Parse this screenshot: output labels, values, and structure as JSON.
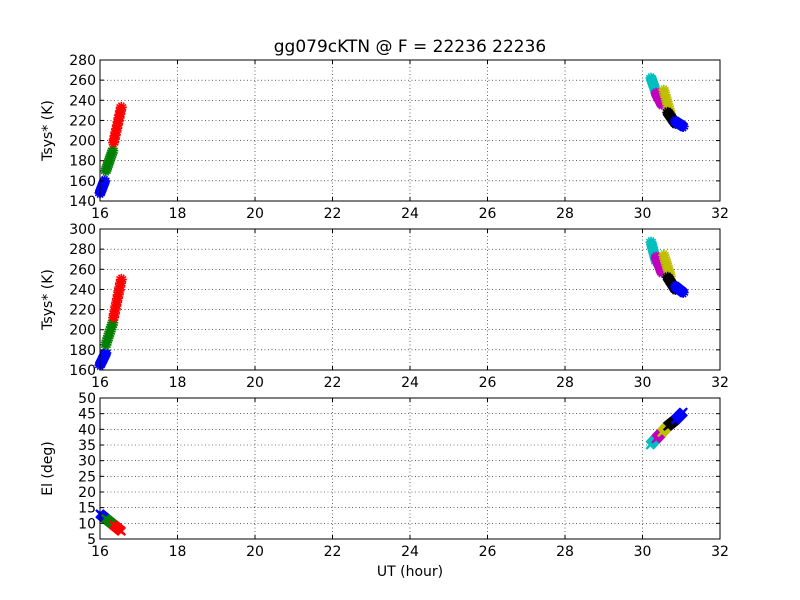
{
  "title": "gg079cKTN @ F = 22236 22236",
  "chart_data": {
    "type": "scatter",
    "title": "gg079cKTN @ F = 22236 22236",
    "xlabel": "UT (hour)",
    "colors": {
      "blue": "#0000ff",
      "green": "#008000",
      "red": "#ff0000",
      "cyan": "#00bfbf",
      "magenta": "#bf00bf",
      "yellow": "#bfbf00",
      "black": "#000000"
    },
    "panels": [
      {
        "name": "tsys-top",
        "ylabel": "Tsys* (K)",
        "xlim": [
          16,
          32
        ],
        "ylim": [
          140,
          280
        ],
        "xticks": [
          16,
          18,
          20,
          22,
          24,
          26,
          28,
          30,
          32
        ],
        "yticks": [
          140,
          160,
          180,
          200,
          220,
          240,
          260,
          280
        ],
        "grid": true,
        "marker": "*",
        "series": [
          {
            "color": "blue",
            "x0": 16.0,
            "x1": 16.12,
            "y0": 148,
            "y1": 160
          },
          {
            "color": "green",
            "x0": 16.15,
            "x1": 16.33,
            "y0": 170,
            "y1": 190
          },
          {
            "color": "red",
            "x0": 16.35,
            "x1": 16.55,
            "y0": 198,
            "y1": 233
          },
          {
            "color": "cyan",
            "x0": 30.22,
            "x1": 30.35,
            "y0": 262,
            "y1": 248
          },
          {
            "color": "magenta",
            "x0": 30.35,
            "x1": 30.5,
            "y0": 247,
            "y1": 236
          },
          {
            "color": "yellow",
            "x0": 30.55,
            "x1": 30.72,
            "y0": 250,
            "y1": 227
          },
          {
            "color": "black",
            "x0": 30.65,
            "x1": 30.85,
            "y0": 228,
            "y1": 217
          },
          {
            "color": "blue",
            "x0": 30.85,
            "x1": 31.05,
            "y0": 219,
            "y1": 214
          }
        ]
      },
      {
        "name": "tsys-bottom",
        "ylabel": "Tsys* (K)",
        "xlim": [
          16,
          32
        ],
        "ylim": [
          160,
          300
        ],
        "xticks": [
          16,
          18,
          20,
          22,
          24,
          26,
          28,
          30,
          32
        ],
        "yticks": [
          160,
          180,
          200,
          220,
          240,
          260,
          280,
          300
        ],
        "grid": true,
        "marker": "*",
        "series": [
          {
            "color": "blue",
            "x0": 16.0,
            "x1": 16.15,
            "y0": 165,
            "y1": 177
          },
          {
            "color": "green",
            "x0": 16.15,
            "x1": 16.33,
            "y0": 185,
            "y1": 207
          },
          {
            "color": "red",
            "x0": 16.35,
            "x1": 16.55,
            "y0": 212,
            "y1": 250
          },
          {
            "color": "cyan",
            "x0": 30.22,
            "x1": 30.35,
            "y0": 287,
            "y1": 268
          },
          {
            "color": "magenta",
            "x0": 30.35,
            "x1": 30.5,
            "y0": 272,
            "y1": 257
          },
          {
            "color": "yellow",
            "x0": 30.55,
            "x1": 30.72,
            "y0": 274,
            "y1": 253
          },
          {
            "color": "black",
            "x0": 30.65,
            "x1": 30.85,
            "y0": 252,
            "y1": 240
          },
          {
            "color": "blue",
            "x0": 30.85,
            "x1": 31.05,
            "y0": 243,
            "y1": 237
          }
        ]
      },
      {
        "name": "elevation",
        "ylabel": "El (deg)",
        "xlim": [
          16,
          32
        ],
        "ylim": [
          5,
          50
        ],
        "xticks": [
          16,
          18,
          20,
          22,
          24,
          26,
          28,
          30,
          32
        ],
        "yticks": [
          5,
          10,
          15,
          20,
          25,
          30,
          35,
          40,
          45,
          50
        ],
        "grid": true,
        "marker": "x",
        "series": [
          {
            "color": "blue",
            "x0": 16.0,
            "x1": 16.15,
            "y0": 13,
            "y1": 11.5
          },
          {
            "color": "green",
            "x0": 16.15,
            "x1": 16.35,
            "y0": 11.5,
            "y1": 9.5
          },
          {
            "color": "red",
            "x0": 16.35,
            "x1": 16.55,
            "y0": 9.5,
            "y1": 7.5
          },
          {
            "color": "cyan",
            "x0": 30.2,
            "x1": 30.35,
            "y0": 35,
            "y1": 37
          },
          {
            "color": "magenta",
            "x0": 30.35,
            "x1": 30.5,
            "y0": 37,
            "y1": 39
          },
          {
            "color": "yellow",
            "x0": 30.5,
            "x1": 30.65,
            "y0": 39,
            "y1": 41
          },
          {
            "color": "black",
            "x0": 30.65,
            "x1": 30.85,
            "y0": 41,
            "y1": 43
          },
          {
            "color": "blue",
            "x0": 30.85,
            "x1": 31.05,
            "y0": 43,
            "y1": 45.5
          }
        ]
      }
    ]
  }
}
